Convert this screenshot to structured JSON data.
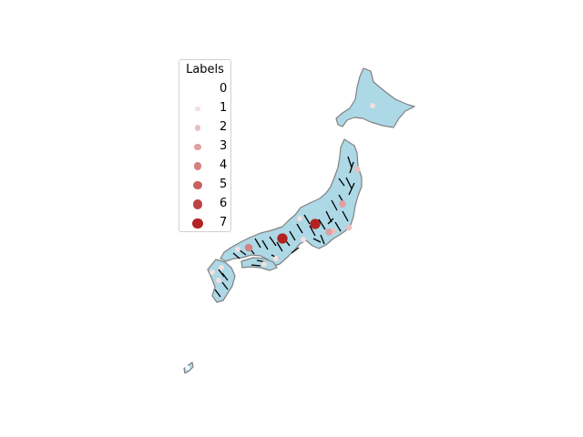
{
  "map": {
    "land_color": "#add8e6",
    "edge_color": "#808080",
    "edge_line_color": "#000000",
    "node_base_color": "#b22222"
  },
  "legend": {
    "title": "Labels",
    "entries": [
      {
        "label": "0",
        "value": 0
      },
      {
        "label": "1",
        "value": 1
      },
      {
        "label": "2",
        "value": 2
      },
      {
        "label": "3",
        "value": 3
      },
      {
        "label": "4",
        "value": 4
      },
      {
        "label": "5",
        "value": 5
      },
      {
        "label": "6",
        "value": 6
      },
      {
        "label": "7",
        "value": 7
      }
    ]
  },
  "nodes": [
    {
      "id": "hokkaido",
      "value": 1
    },
    {
      "id": "tohoku-n",
      "value": 2
    },
    {
      "id": "tohoku-e",
      "value": 3
    },
    {
      "id": "tohoku-s",
      "value": 2
    },
    {
      "id": "kanto-n",
      "value": 2
    },
    {
      "id": "kanto",
      "value": 7
    },
    {
      "id": "kanto-s",
      "value": 3
    },
    {
      "id": "chubu-n",
      "value": 1
    },
    {
      "id": "chubu",
      "value": 1
    },
    {
      "id": "kinki",
      "value": 7
    },
    {
      "id": "kinki-s",
      "value": 1
    },
    {
      "id": "chugoku",
      "value": 4
    },
    {
      "id": "chugoku-e",
      "value": 1
    },
    {
      "id": "shikoku",
      "value": 1
    },
    {
      "id": "kyushu-n",
      "value": 1
    },
    {
      "id": "kyushu-w",
      "value": 1
    },
    {
      "id": "kyushu-s",
      "value": 1
    },
    {
      "id": "okinawa",
      "value": 0
    }
  ]
}
